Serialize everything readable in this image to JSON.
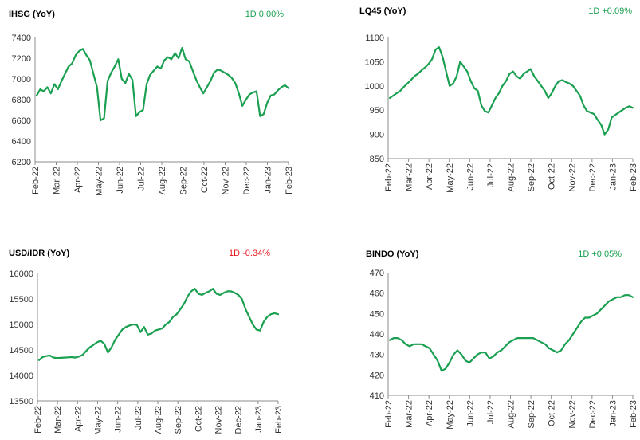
{
  "colors": {
    "line": "#1aa050",
    "up": "#1aa050",
    "down": "#e8161c",
    "axis": "#8c8c8c",
    "text": "#000000"
  },
  "chart_data": [
    {
      "type": "line",
      "title": "IHSG (YoY)",
      "change": "1D  0.00%",
      "change_direction": "up",
      "x_tick_labels": [
        "Feb-22",
        "Mar-22",
        "Apr-22",
        "May-22",
        "Jun-22",
        "Jul-22",
        "Aug-22",
        "Sep-22",
        "Oct-22",
        "Nov-22",
        "Dec-22",
        "Jan-23",
        "Feb-23"
      ],
      "y_ticks": [
        6200,
        6400,
        6600,
        6800,
        7000,
        7200,
        7400
      ],
      "ylim": [
        6200,
        7400
      ],
      "series": [
        {
          "values": [
            6840,
            6900,
            6880,
            6920,
            6860,
            6950,
            6900,
            6980,
            7050,
            7120,
            7150,
            7230,
            7270,
            7290,
            7230,
            7180,
            7050,
            6920,
            6600,
            6620,
            6980,
            7060,
            7120,
            7190,
            7000,
            6960,
            7050,
            6990,
            6640,
            6680,
            6700,
            6950,
            7040,
            7080,
            7120,
            7100,
            7180,
            7210,
            7190,
            7250,
            7200,
            7300,
            7190,
            7170,
            7080,
            6990,
            6920,
            6860,
            6920,
            6980,
            7060,
            7090,
            7080,
            7060,
            7040,
            7010,
            6960,
            6860,
            6740,
            6800,
            6850,
            6870,
            6880,
            6640,
            6660,
            6770,
            6840,
            6850,
            6890,
            6920,
            6940,
            6910
          ]
        }
      ]
    },
    {
      "type": "line",
      "title": "LQ45 (YoY)",
      "change": "1D +0.09%",
      "change_direction": "up",
      "x_tick_labels": [
        "Feb-22",
        "Mar-22",
        "Apr-22",
        "May-22",
        "Jun-22",
        "Jul-22",
        "Aug-22",
        "Sep-22",
        "Oct-22",
        "Nov-22",
        "Dec-22",
        "Jan-23",
        "Feb-23"
      ],
      "y_ticks": [
        850,
        900,
        950,
        1000,
        1050,
        1100
      ],
      "ylim": [
        850,
        1100
      ],
      "series": [
        {
          "values": [
            975,
            980,
            985,
            990,
            998,
            1005,
            1012,
            1020,
            1025,
            1032,
            1038,
            1045,
            1055,
            1075,
            1080,
            1060,
            1030,
            1000,
            1005,
            1020,
            1050,
            1040,
            1030,
            1010,
            995,
            990,
            960,
            948,
            945,
            960,
            975,
            985,
            1000,
            1010,
            1025,
            1030,
            1020,
            1015,
            1025,
            1030,
            1035,
            1020,
            1010,
            1000,
            990,
            975,
            985,
            1000,
            1010,
            1012,
            1008,
            1005,
            1000,
            990,
            980,
            960,
            948,
            945,
            942,
            930,
            920,
            900,
            910,
            935,
            940,
            945,
            950,
            955,
            958,
            955
          ]
        }
      ]
    },
    {
      "type": "line",
      "title": "USD/IDR (YoY)",
      "change": "1D -0.34%",
      "change_direction": "down",
      "x_tick_labels": [
        "Feb-22",
        "Mar-22",
        "Apr-22",
        "May-22",
        "Jun-22",
        "Jul-22",
        "Aug-22",
        "Sep-22",
        "Oct-22",
        "Nov-22",
        "Dec-22",
        "Jan-23",
        "Feb-23"
      ],
      "y_ticks": [
        13500,
        14000,
        14500,
        15000,
        15500,
        16000
      ],
      "ylim": [
        13500,
        16000
      ],
      "series": [
        {
          "values": [
            14300,
            14360,
            14380,
            14390,
            14350,
            14340,
            14345,
            14350,
            14355,
            14360,
            14350,
            14370,
            14400,
            14480,
            14550,
            14600,
            14650,
            14680,
            14620,
            14450,
            14550,
            14700,
            14800,
            14900,
            14950,
            14980,
            15000,
            14990,
            14850,
            14950,
            14800,
            14820,
            14880,
            14900,
            14920,
            15000,
            15050,
            15150,
            15200,
            15300,
            15400,
            15550,
            15650,
            15700,
            15600,
            15580,
            15620,
            15650,
            15700,
            15600,
            15580,
            15620,
            15650,
            15650,
            15620,
            15580,
            15500,
            15300,
            15150,
            15000,
            14900,
            14880,
            15050,
            15150,
            15200,
            15220,
            15200
          ]
        }
      ]
    },
    {
      "type": "line",
      "title": "BINDO (YoY)",
      "change": "1D +0.05%",
      "change_direction": "up",
      "x_tick_labels": [
        "Feb-22",
        "Mar-22",
        "Apr-22",
        "May-22",
        "Jun-22",
        "Jul-22",
        "Aug-22",
        "Sep-22",
        "Oct-22",
        "Nov-22",
        "Dec-22",
        "Jan-23",
        "Feb-23"
      ],
      "y_ticks": [
        410,
        420,
        430,
        440,
        450,
        460,
        470
      ],
      "ylim": [
        410,
        470
      ],
      "series": [
        {
          "values": [
            437,
            438,
            438,
            437,
            435,
            434,
            435,
            435,
            435,
            434,
            433,
            430,
            427,
            422,
            423,
            426,
            430,
            432,
            430,
            427,
            426,
            428,
            430,
            431,
            431,
            428,
            429,
            431,
            432,
            434,
            436,
            437,
            438,
            438,
            438,
            438,
            438,
            437,
            436,
            435,
            433,
            432,
            431,
            432,
            435,
            437,
            440,
            443,
            446,
            448,
            448,
            449,
            450,
            452,
            454,
            456,
            457,
            458,
            458,
            459,
            459,
            458
          ]
        }
      ]
    }
  ]
}
